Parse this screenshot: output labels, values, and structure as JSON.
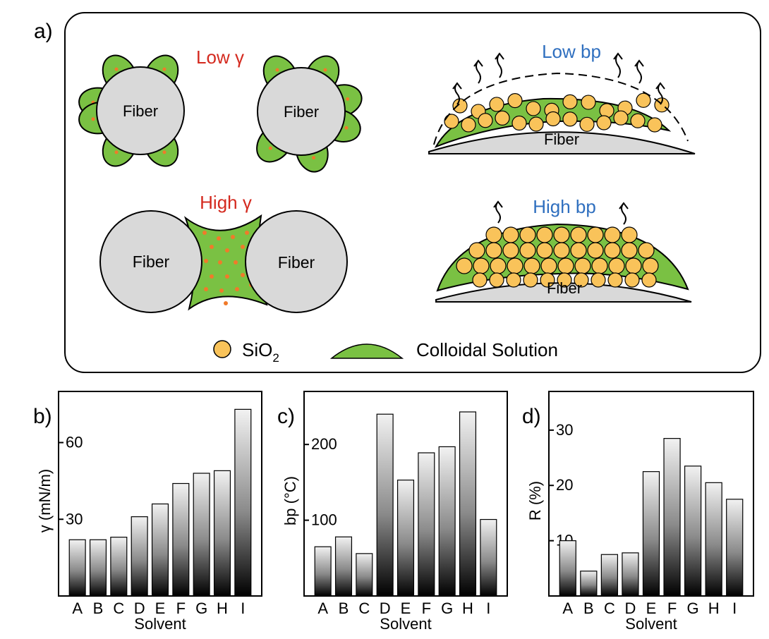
{
  "panel_a": {
    "label": "a)",
    "low_gamma": "Low γ",
    "high_gamma": "High γ",
    "low_bp": "Low bp",
    "high_bp": "High bp",
    "fiber": "Fiber",
    "legend_sio2_main": "SiO",
    "legend_sio2_sub": "2",
    "legend_colloid": "Colloidal Solution",
    "colors": {
      "gamma_text": "#d42a1f",
      "bp_text": "#2f6fbf",
      "colloid": "#7ac143",
      "sio2": "#f9c35a",
      "fiber": "#d9d9d9",
      "dot": "#f07a2a"
    },
    "icon": "fiber-colloid-schematic"
  },
  "chart_data": [
    {
      "panel_label": "b)",
      "type": "bar",
      "categories": [
        "A",
        "B",
        "C",
        "D",
        "E",
        "F",
        "G",
        "H",
        "I"
      ],
      "values": [
        22,
        22,
        23,
        31,
        36,
        44,
        48,
        49,
        73
      ],
      "xlabel": "Solvent",
      "ylabel": "γ (mN/m)",
      "yticks": [
        30,
        60
      ],
      "ylim": [
        0,
        80
      ],
      "grid": false
    },
    {
      "panel_label": "c)",
      "type": "bar",
      "categories": [
        "A",
        "B",
        "C",
        "D",
        "E",
        "F",
        "G",
        "H",
        "I"
      ],
      "values": [
        65,
        78,
        56,
        240,
        153,
        189,
        197,
        243,
        101
      ],
      "xlabel": "Solvent",
      "ylabel": "bp (°C)",
      "yticks": [
        100,
        200
      ],
      "ylim": [
        0,
        270
      ],
      "grid": false
    },
    {
      "panel_label": "d)",
      "type": "bar",
      "categories": [
        "A",
        "B",
        "C",
        "D",
        "E",
        "F",
        "G",
        "H",
        "I"
      ],
      "values": [
        10,
        4.5,
        7.5,
        7.8,
        22.5,
        28.5,
        23.5,
        20.5,
        17.5
      ],
      "xlabel": "Solvent",
      "ylabel": "R (%)",
      "yticks": [
        10,
        20,
        30
      ],
      "ylim": [
        0,
        37
      ],
      "grid": false
    }
  ]
}
